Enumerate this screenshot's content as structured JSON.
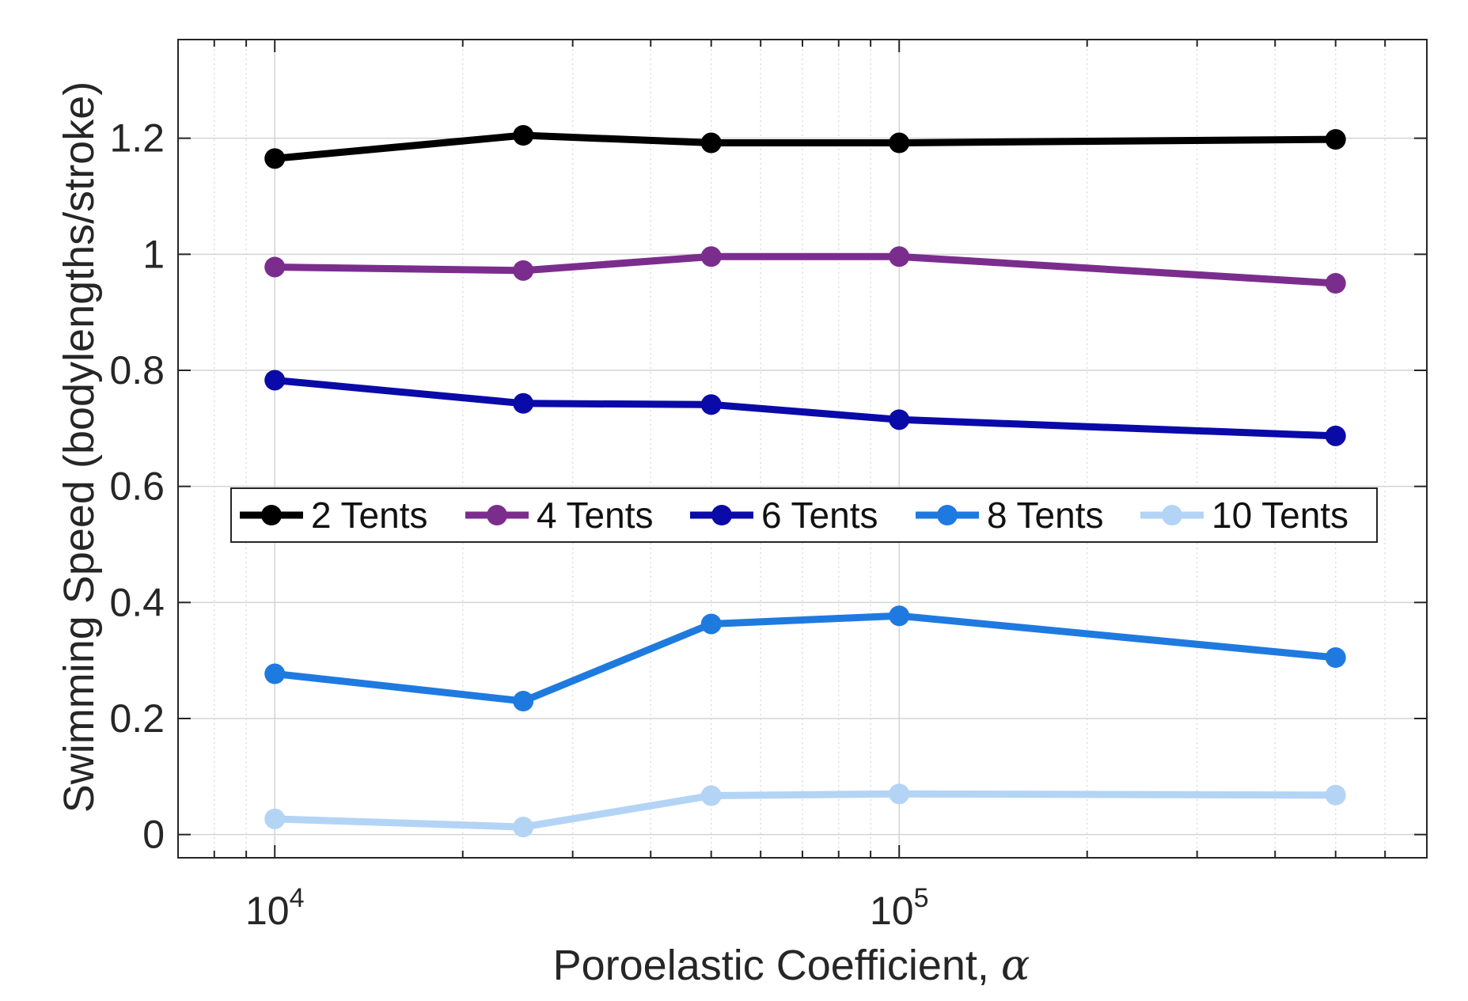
{
  "chart_data": {
    "type": "line",
    "xscale": "log",
    "xlim": [
      7000,
      700000
    ],
    "ylim": [
      -0.04,
      1.37
    ],
    "xlabel": "Poroelastic Coefficient, ",
    "xlabel_symbol": "α",
    "ylabel": "Swimming Speed (bodylengths/stroke)",
    "x": [
      10000,
      25000,
      50000,
      100000,
      500000
    ],
    "x_ticks": [
      {
        "value": 10000,
        "base": "10",
        "exp": "4"
      },
      {
        "value": 100000,
        "base": "10",
        "exp": "5"
      }
    ],
    "y_ticks": [
      {
        "value": 0,
        "label": "0"
      },
      {
        "value": 0.2,
        "label": "0.2"
      },
      {
        "value": 0.4,
        "label": "0.4"
      },
      {
        "value": 0.6,
        "label": "0.6"
      },
      {
        "value": 0.8,
        "label": "0.8"
      },
      {
        "value": 1.0,
        "label": "1"
      },
      {
        "value": 1.2,
        "label": "1.2"
      }
    ],
    "grid": true,
    "minor_grid": true,
    "legend_position": "center, single row",
    "series": [
      {
        "name": "2 Tents",
        "color": "#000000",
        "values": [
          1.165,
          1.205,
          1.192,
          1.192,
          1.198
        ]
      },
      {
        "name": "4 Tents",
        "color": "#7b2d8e",
        "values": [
          0.978,
          0.972,
          0.996,
          0.996,
          0.95
        ]
      },
      {
        "name": "6 Tents",
        "color": "#0a0aa8",
        "values": [
          0.783,
          0.743,
          0.741,
          0.715,
          0.687
        ]
      },
      {
        "name": "8 Tents",
        "color": "#1f7ae0",
        "values": [
          0.277,
          0.23,
          0.363,
          0.377,
          0.305
        ]
      },
      {
        "name": "10 Tents",
        "color": "#b3d4f5",
        "values": [
          0.027,
          0.013,
          0.067,
          0.07,
          0.068
        ]
      }
    ]
  }
}
